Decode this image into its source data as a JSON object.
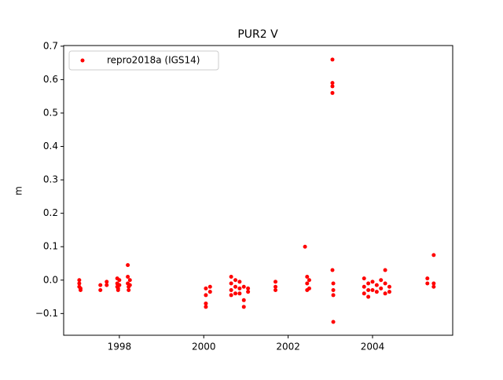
{
  "chart_data": {
    "type": "scatter",
    "title": "PUR2 V",
    "y_label": "m",
    "xlim": [
      1996.68,
      2005.9
    ],
    "xticks": [
      1998,
      2000,
      2002,
      2004
    ],
    "ylim": [
      -0.165,
      0.702
    ],
    "yticks": [
      {
        "value": -0.1,
        "label": "−0.1"
      },
      {
        "value": 0,
        "label": "0.0"
      },
      0.1,
      0.2,
      0.3,
      0.4,
      0.5,
      0.6,
      0.7
    ],
    "legend": "upper left",
    "series": [
      {
        "name": "repro2018a (IGS14)",
        "color": "#ff0000",
        "x": [
          1997.05,
          1997.05,
          1997.05,
          1997.08,
          1997.08,
          1997.55,
          1997.55,
          1997.7,
          1997.7,
          1997.95,
          1997.95,
          1997.95,
          1997.97,
          1997.97,
          1998.0,
          1998.0,
          1998.2,
          1998.2,
          1998.2,
          1998.22,
          1998.22,
          1998.25,
          1998.25,
          2000.05,
          2000.05,
          2000.05,
          2000.05,
          2000.15,
          2000.15,
          2000.65,
          2000.65,
          2000.65,
          2000.65,
          2000.75,
          2000.75,
          2000.75,
          2000.85,
          2000.85,
          2000.85,
          2000.95,
          2000.95,
          2000.95,
          2001.05,
          2001.05,
          2001.7,
          2001.7,
          2001.7,
          2002.4,
          2002.45,
          2002.45,
          2002.45,
          2002.5,
          2002.5,
          2003.05,
          2003.05,
          2003.05,
          2003.05,
          2003.05,
          2003.07,
          2003.07,
          2003.07,
          2003.07,
          2003.8,
          2003.8,
          2003.8,
          2003.9,
          2003.9,
          2003.9,
          2004.0,
          2004.0,
          2004.1,
          2004.1,
          2004.2,
          2004.2,
          2004.3,
          2004.3,
          2004.3,
          2004.4,
          2004.4,
          2005.3,
          2005.3,
          2005.45,
          2005.45,
          2005.45
        ],
        "values": [
          0,
          -0.01,
          -0.02,
          -0.03,
          -0.025,
          -0.015,
          -0.03,
          -0.005,
          -0.015,
          0.005,
          -0.01,
          -0.02,
          -0.03,
          -0.025,
          0,
          -0.015,
          0.045,
          0.01,
          -0.01,
          -0.02,
          -0.03,
          -0.015,
          0,
          -0.025,
          -0.045,
          -0.07,
          -0.08,
          -0.02,
          -0.035,
          0.01,
          -0.01,
          -0.03,
          -0.045,
          0,
          -0.02,
          -0.04,
          -0.005,
          -0.025,
          -0.04,
          -0.06,
          -0.08,
          -0.02,
          -0.025,
          -0.035,
          -0.005,
          -0.02,
          -0.03,
          0.1,
          0.01,
          -0.01,
          -0.03,
          0,
          -0.025,
          0.66,
          0.59,
          0.58,
          0.56,
          0.03,
          -0.01,
          -0.03,
          -0.045,
          -0.125,
          0.005,
          -0.02,
          -0.04,
          -0.01,
          -0.03,
          -0.05,
          -0.005,
          -0.03,
          -0.015,
          -0.035,
          0,
          -0.025,
          0.03,
          -0.01,
          -0.04,
          -0.02,
          -0.035,
          0.005,
          -0.01,
          0.075,
          -0.01,
          -0.02
        ]
      }
    ]
  }
}
